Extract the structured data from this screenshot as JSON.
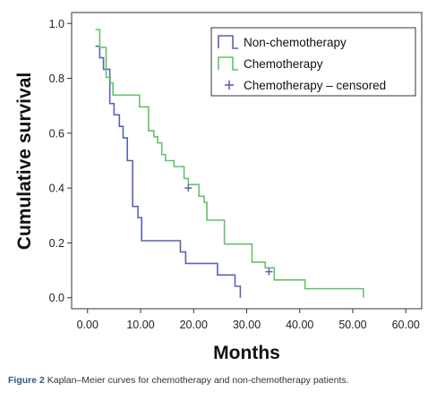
{
  "caption": {
    "label": "Figure 2",
    "text": "Kaplan–Meier curves for chemotherapy and non-chemotherapy patients."
  },
  "chart_data": {
    "type": "line",
    "subtype": "step",
    "xlabel": "Months",
    "ylabel": "Cumulative survival",
    "xlim": [
      -3,
      63
    ],
    "ylim": [
      -0.04,
      1.04
    ],
    "xticks": [
      0,
      10,
      20,
      30,
      40,
      50,
      60
    ],
    "xtick_labels": [
      "0.00",
      "10.00",
      "20.00",
      "30.00",
      "40.00",
      "50.00",
      "60.00"
    ],
    "yticks": [
      0,
      0.2,
      0.4,
      0.6,
      0.8,
      1.0
    ],
    "ytick_labels": [
      "0.0",
      "0.2",
      "0.4",
      "0.6",
      "0.8",
      "1.0"
    ],
    "grid": false,
    "legend_position": "top-right",
    "series": [
      {
        "name": "Non-chemotherapy",
        "color": "#5a63b0",
        "points": [
          [
            1.5,
            0.917
          ],
          [
            2.3,
            0.875
          ],
          [
            3.0,
            0.833
          ],
          [
            4.2,
            0.708
          ],
          [
            5.0,
            0.667
          ],
          [
            6.0,
            0.625
          ],
          [
            6.7,
            0.583
          ],
          [
            7.5,
            0.5
          ],
          [
            8.5,
            0.333
          ],
          [
            9.5,
            0.292
          ],
          [
            10.2,
            0.208
          ],
          [
            17.5,
            0.167
          ],
          [
            18.5,
            0.125
          ],
          [
            24.5,
            0.083
          ],
          [
            27.8,
            0.042
          ],
          [
            28.8,
            0.0
          ]
        ],
        "end_x": 28.8
      },
      {
        "name": "Chemotherapy",
        "color": "#66c26a",
        "points": [
          [
            1.5,
            0.978
          ],
          [
            2.3,
            0.913
          ],
          [
            3.5,
            0.804
          ],
          [
            4.3,
            0.783
          ],
          [
            4.8,
            0.739
          ],
          [
            9.8,
            0.696
          ],
          [
            11.5,
            0.609
          ],
          [
            12.5,
            0.587
          ],
          [
            13.2,
            0.565
          ],
          [
            14.0,
            0.522
          ],
          [
            14.7,
            0.5
          ],
          [
            16.3,
            0.478
          ],
          [
            18.2,
            0.435
          ],
          [
            19.0,
            0.413
          ],
          [
            21.0,
            0.37
          ],
          [
            22.0,
            0.348
          ],
          [
            22.5,
            0.283
          ],
          [
            25.8,
            0.196
          ],
          [
            31.0,
            0.13
          ],
          [
            33.5,
            0.109
          ],
          [
            35.2,
            0.065
          ],
          [
            41.0,
            0.033
          ],
          [
            52.0,
            0.0
          ]
        ],
        "end_x": 52.0
      },
      {
        "name": "Chemotherapy – censored",
        "color": "#5a63b0",
        "marker": "+",
        "points": [
          [
            19.0,
            0.4
          ],
          [
            34.2,
            0.095
          ]
        ]
      }
    ]
  }
}
